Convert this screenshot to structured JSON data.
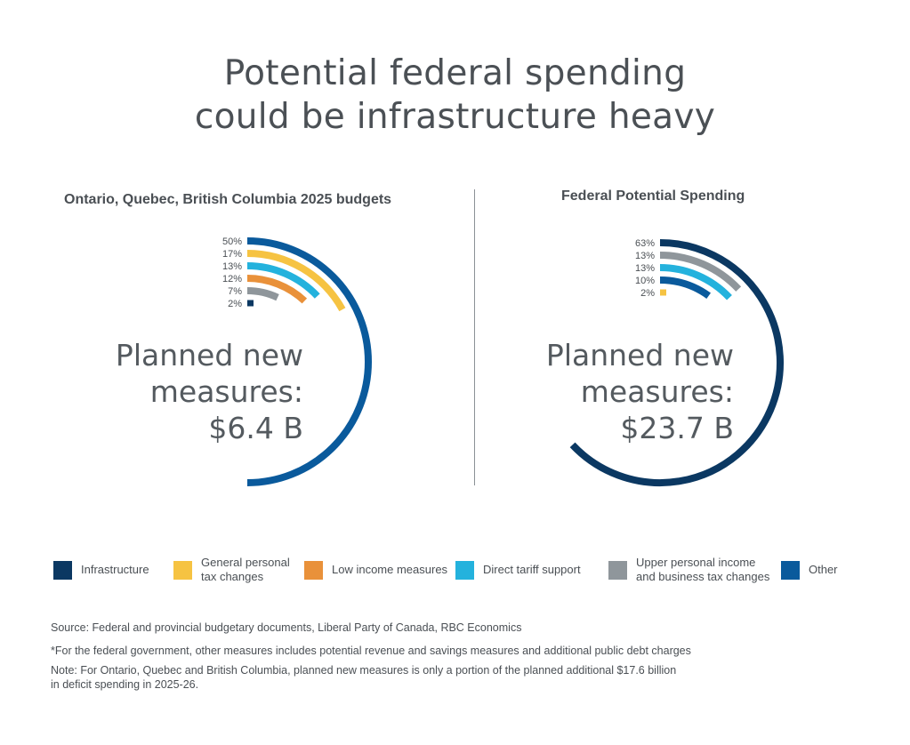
{
  "title_lines": [
    "Potential federal spending",
    "could be infrastructure heavy"
  ],
  "colors": {
    "Infrastructure": "#0b3862",
    "General personal tax changes": "#f6c342",
    "Low income measures": "#e9913a",
    "Direct tariff support": "#24b2dd",
    "Upper personal income and business tax changes": "#8f969b",
    "Other": "#0a5a9c"
  },
  "chart_data": [
    {
      "type": "radial-bar",
      "title": "Ontario, Quebec, British Columbia 2025 budgets",
      "center_text": [
        "Planned new",
        "measures:",
        "$6.4 B"
      ],
      "total": "$6.4 B",
      "series": [
        {
          "name": "Other",
          "value": 50,
          "label": "50%"
        },
        {
          "name": "General personal tax changes",
          "value": 17,
          "label": "17%"
        },
        {
          "name": "Direct tariff support",
          "value": 13,
          "label": "13%"
        },
        {
          "name": "Low income measures",
          "value": 12,
          "label": "12%"
        },
        {
          "name": "Upper personal income and business tax changes",
          "value": 7,
          "label": "7%"
        },
        {
          "name": "Infrastructure",
          "value": 2,
          "label": "2%"
        }
      ]
    },
    {
      "type": "radial-bar",
      "title": "Federal Potential Spending",
      "center_text": [
        "Planned new",
        "measures:",
        "$23.7 B"
      ],
      "total": "$23.7 B",
      "series": [
        {
          "name": "Infrastructure",
          "value": 63,
          "label": "63%"
        },
        {
          "name": "Upper personal income and business tax changes",
          "value": 13,
          "label": "13%"
        },
        {
          "name": "Direct tariff support",
          "value": 13,
          "label": "13%"
        },
        {
          "name": "Other",
          "value": 10,
          "label": "10%"
        },
        {
          "name": "General personal tax changes",
          "value": 2,
          "label": "2%"
        }
      ]
    }
  ],
  "legend": [
    {
      "name": "Infrastructure",
      "lines": [
        "Infrastructure"
      ]
    },
    {
      "name": "General personal tax changes",
      "lines": [
        "General personal",
        "tax changes"
      ]
    },
    {
      "name": "Low income measures",
      "lines": [
        "Low income measures"
      ]
    },
    {
      "name": "Direct tariff support",
      "lines": [
        "Direct tariff support"
      ]
    },
    {
      "name": "Upper personal income and business tax changes",
      "lines": [
        "Upper personal income",
        "and business tax changes"
      ]
    },
    {
      "name": "Other",
      "lines": [
        "Other"
      ]
    }
  ],
  "notes": {
    "source": "Source: Federal and provincial budgetary documents, Liberal Party of Canada, RBC Economics",
    "footnote": "*For the federal government, other measures includes potential revenue and savings measures and additional public debt charges",
    "note_lines": [
      "Note: For Ontario, Quebec and British Columbia, planned new measures is only a portion of the planned additional $17.6 billion",
      "in deficit spending in 2025-26."
    ]
  }
}
